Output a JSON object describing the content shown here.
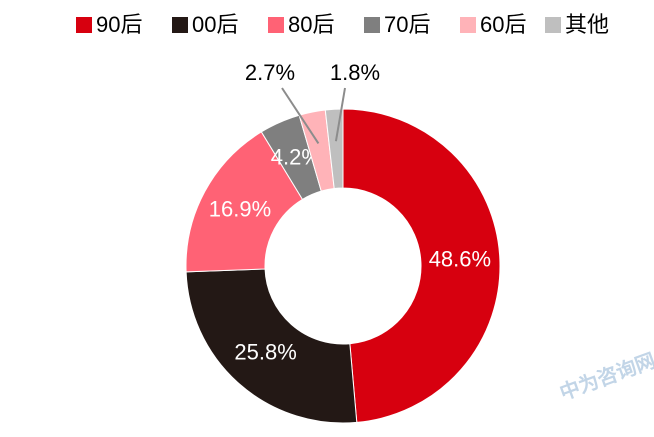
{
  "chart_data": {
    "type": "donut",
    "categories": [
      "90后",
      "00后",
      "80后",
      "70后",
      "60后",
      "其他"
    ],
    "values": [
      48.6,
      25.8,
      16.9,
      4.2,
      2.7,
      1.8
    ],
    "value_labels": [
      "48.6%",
      "25.8%",
      "16.9%",
      "4.2%",
      "2.7%",
      "1.8%"
    ],
    "colors": [
      "#d7000f",
      "#231815",
      "#ff6275",
      "#7f7f7f",
      "#ffb3b8",
      "#bfbfbf"
    ],
    "legend": "top",
    "watermark": "中为咨询网"
  }
}
